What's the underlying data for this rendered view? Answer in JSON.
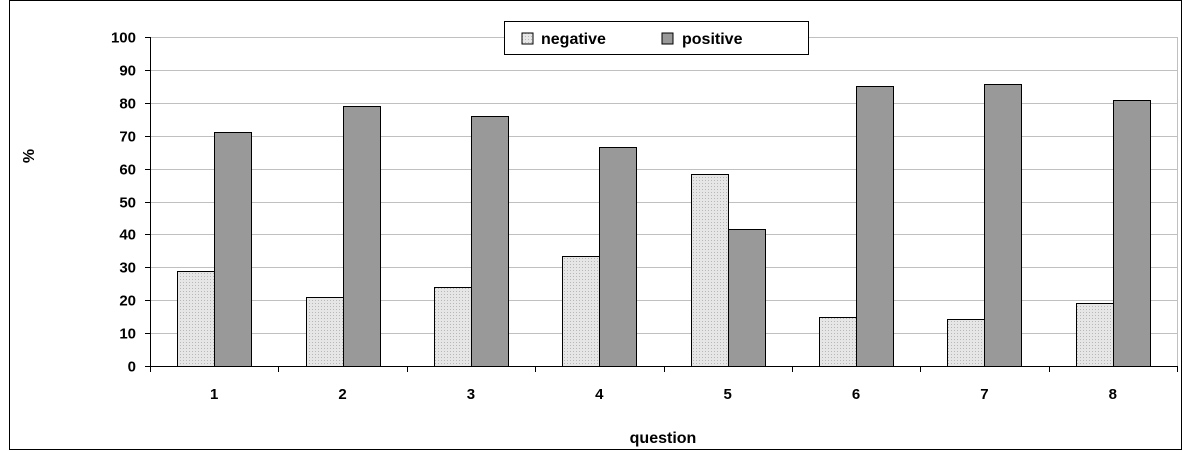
{
  "chart_data": {
    "type": "bar",
    "title": "",
    "xlabel": "question",
    "ylabel": "%",
    "categories": [
      "1",
      "2",
      "3",
      "4",
      "5",
      "6",
      "7",
      "8"
    ],
    "series": [
      {
        "name": "negative",
        "values": [
          29,
          21,
          24,
          33.3,
          58.3,
          15,
          14.3,
          19.2
        ]
      },
      {
        "name": "positive",
        "values": [
          71,
          79,
          76,
          66.7,
          41.7,
          85,
          85.7,
          80.8
        ]
      }
    ],
    "ylim": [
      0,
      100
    ],
    "yticks": [
      0,
      10,
      20,
      30,
      40,
      50,
      60,
      70,
      80,
      90,
      100
    ],
    "grid": true,
    "legend": "top-center",
    "colors": {
      "negative": "#e6e6e6",
      "positive": "#999999"
    }
  }
}
